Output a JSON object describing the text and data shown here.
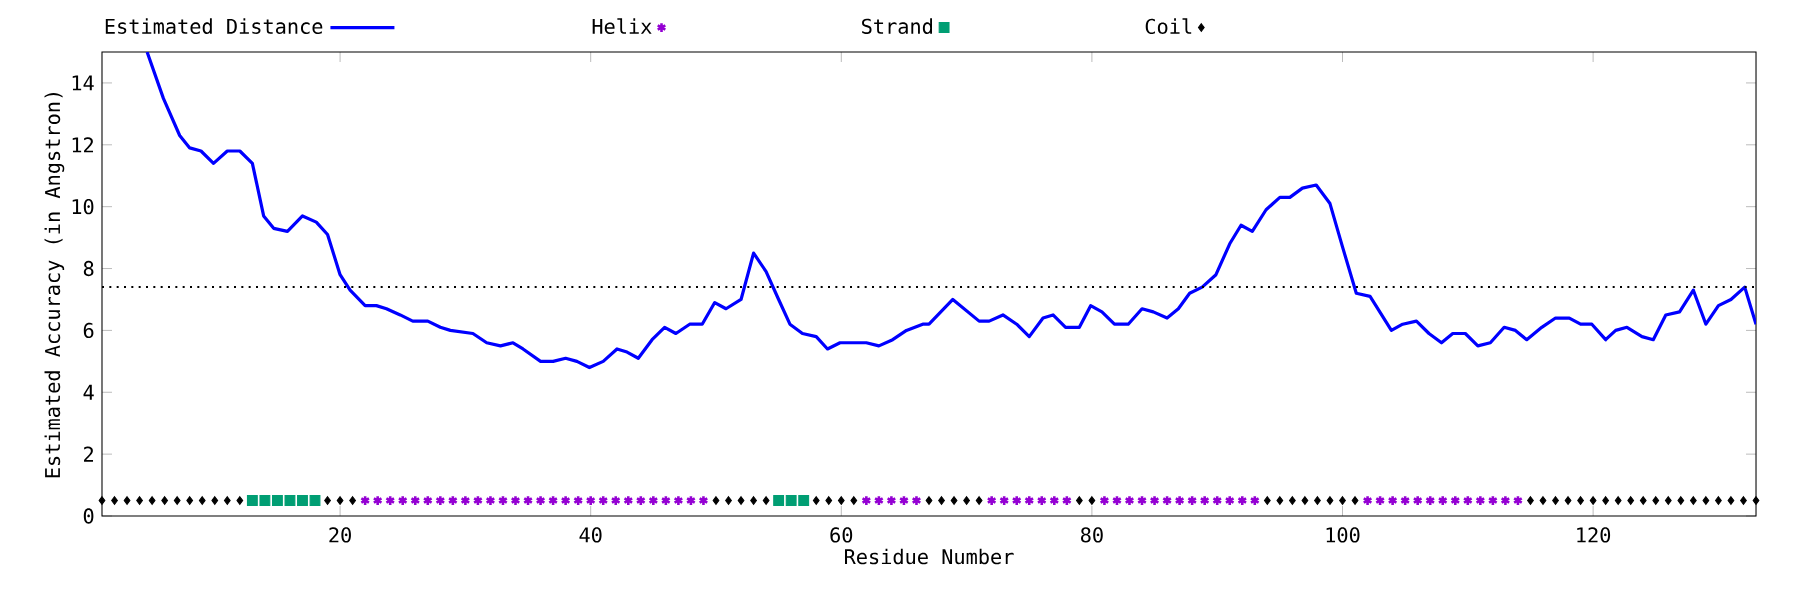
{
  "chart_data": {
    "type": "line",
    "xlabel": "Residue Number",
    "ylabel": "Estimated Accuracy (in Angstron)",
    "xlim": [
      1,
      133
    ],
    "ylim": [
      0,
      15
    ],
    "xticks": [
      20,
      40,
      60,
      80,
      100,
      120
    ],
    "yticks": [
      0,
      2,
      4,
      6,
      8,
      10,
      12,
      14
    ],
    "legend": "top",
    "grid": false,
    "ref_lines": [
      {
        "axis": "y",
        "value": 7.4,
        "color": "#000000",
        "line_style": "dotted"
      }
    ],
    "series": [
      {
        "name": "Estimated Distance",
        "color": "#0000ff",
        "line_style": "solid",
        "marker": "none",
        "x": [
          4.6,
          5.9,
          7.2,
          8.0,
          8.9,
          9.9,
          11.0,
          12.0,
          13.0,
          13.9,
          14.7,
          15.8,
          17.0,
          18.1,
          19.0,
          20.0,
          20.8,
          22.0,
          22.9,
          23.7,
          24.8,
          25.8,
          27.0,
          28.0,
          28.8,
          30.6,
          31.7,
          32.8,
          33.8,
          34.6,
          36.0,
          37.0,
          38.0,
          38.9,
          39.9,
          41.0,
          42.1,
          42.9,
          43.8,
          44.9,
          45.9,
          46.8,
          47.9,
          48.9,
          49.9,
          50.8,
          52.0,
          53.0,
          54.0,
          55.0,
          55.9,
          56.9,
          58.0,
          58.9,
          59.9,
          61.0,
          62.0,
          63.0,
          64.1,
          65.2,
          66.5,
          67.0,
          68.9,
          71.0,
          71.8,
          72.9,
          74.0,
          75.0,
          76.1,
          76.9,
          77.9,
          79.0,
          79.9,
          80.8,
          81.8,
          82.9,
          84.0,
          84.9,
          86.0,
          86.9,
          87.8,
          88.8,
          89.9,
          91.0,
          91.9,
          92.8,
          93.9,
          95.0,
          95.8,
          96.8,
          97.9,
          99.0,
          100.0,
          101.1,
          102.2,
          103.9,
          104.8,
          105.9,
          106.9,
          107.9,
          108.8,
          109.8,
          110.8,
          111.8,
          112.9,
          113.8,
          114.7,
          115.9,
          117.0,
          118.1,
          119.0,
          119.9,
          121.0,
          121.8,
          122.7,
          123.9,
          124.8,
          125.8,
          126.9,
          128.0,
          129.0,
          130.0,
          131.0,
          132.1,
          133.0
        ],
        "values": [
          15.0,
          13.5,
          12.3,
          11.9,
          11.8,
          11.4,
          11.8,
          11.8,
          11.4,
          9.7,
          9.3,
          9.2,
          9.7,
          9.5,
          9.1,
          7.8,
          7.3,
          6.8,
          6.8,
          6.7,
          6.5,
          6.3,
          6.3,
          6.1,
          6.0,
          5.9,
          5.6,
          5.5,
          5.6,
          5.4,
          5.0,
          5.0,
          5.1,
          5.0,
          4.8,
          5.0,
          5.4,
          5.3,
          5.1,
          5.7,
          6.1,
          5.9,
          6.2,
          6.2,
          6.9,
          6.7,
          7.0,
          8.5,
          7.9,
          7.0,
          6.2,
          5.9,
          5.8,
          5.4,
          5.6,
          5.6,
          5.6,
          5.5,
          5.7,
          6.0,
          6.2,
          6.2,
          7.0,
          6.3,
          6.3,
          6.5,
          6.2,
          5.8,
          6.4,
          6.5,
          6.1,
          6.1,
          6.8,
          6.6,
          6.2,
          6.2,
          6.7,
          6.6,
          6.4,
          6.7,
          7.2,
          7.4,
          7.8,
          8.8,
          9.4,
          9.2,
          9.9,
          10.3,
          10.3,
          10.6,
          10.7,
          10.1,
          8.7,
          7.2,
          7.1,
          6.0,
          6.2,
          6.3,
          5.9,
          5.6,
          5.9,
          5.9,
          5.5,
          5.6,
          6.1,
          6.0,
          5.7,
          6.1,
          6.4,
          6.4,
          6.2,
          6.2,
          5.7,
          6.0,
          6.1,
          5.8,
          5.7,
          6.5,
          6.6,
          7.3,
          6.2,
          6.8,
          7.0,
          7.4,
          6.2
        ]
      },
      {
        "name": "Helix",
        "type": "scatter",
        "color": "#9400d3",
        "marker": "cross",
        "x": [
          22,
          23,
          24,
          25,
          26,
          27,
          28,
          29,
          30,
          31,
          32,
          33,
          34,
          35,
          36,
          37,
          38,
          39,
          40,
          41,
          42,
          43,
          44,
          45,
          46,
          47,
          48,
          49,
          62,
          63,
          64,
          65,
          66,
          72,
          73,
          74,
          75,
          76,
          77,
          78,
          81,
          82,
          83,
          84,
          85,
          86,
          87,
          88,
          89,
          90,
          91,
          92,
          93,
          102,
          103,
          104,
          105,
          106,
          107,
          108,
          109,
          110,
          111,
          112,
          113,
          114
        ],
        "values": [
          0.5,
          0.5,
          0.5,
          0.5,
          0.5,
          0.5,
          0.5,
          0.5,
          0.5,
          0.5,
          0.5,
          0.5,
          0.5,
          0.5,
          0.5,
          0.5,
          0.5,
          0.5,
          0.5,
          0.5,
          0.5,
          0.5,
          0.5,
          0.5,
          0.5,
          0.5,
          0.5,
          0.5,
          0.5,
          0.5,
          0.5,
          0.5,
          0.5,
          0.5,
          0.5,
          0.5,
          0.5,
          0.5,
          0.5,
          0.5,
          0.5,
          0.5,
          0.5,
          0.5,
          0.5,
          0.5,
          0.5,
          0.5,
          0.5,
          0.5,
          0.5,
          0.5,
          0.5,
          0.5,
          0.5,
          0.5,
          0.5,
          0.5,
          0.5,
          0.5,
          0.5,
          0.5,
          0.5,
          0.5,
          0.5,
          0.5
        ]
      },
      {
        "name": "Strand",
        "type": "scatter",
        "color": "#009e73",
        "marker": "square",
        "x": [
          13,
          14,
          15,
          16,
          17,
          18,
          55,
          56,
          57
        ],
        "values": [
          0.5,
          0.5,
          0.5,
          0.5,
          0.5,
          0.5,
          0.5,
          0.5,
          0.5
        ]
      },
      {
        "name": "Coil",
        "type": "scatter",
        "color": "#000000",
        "marker": "diamond",
        "x": [
          1,
          2,
          3,
          4,
          5,
          6,
          7,
          8,
          9,
          10,
          11,
          12,
          19,
          20,
          21,
          50,
          51,
          52,
          53,
          54,
          58,
          59,
          60,
          61,
          67,
          68,
          69,
          70,
          71,
          79,
          80,
          94,
          95,
          96,
          97,
          98,
          99,
          100,
          101,
          115,
          116,
          117,
          118,
          119,
          120,
          121,
          122,
          123,
          124,
          125,
          126,
          127,
          128,
          129,
          130,
          131,
          132,
          133
        ],
        "values": [
          0.5,
          0.5,
          0.5,
          0.5,
          0.5,
          0.5,
          0.5,
          0.5,
          0.5,
          0.5,
          0.5,
          0.5,
          0.5,
          0.5,
          0.5,
          0.5,
          0.5,
          0.5,
          0.5,
          0.5,
          0.5,
          0.5,
          0.5,
          0.5,
          0.5,
          0.5,
          0.5,
          0.5,
          0.5,
          0.5,
          0.5,
          0.5,
          0.5,
          0.5,
          0.5,
          0.5,
          0.5,
          0.5,
          0.5,
          0.5,
          0.5,
          0.5,
          0.5,
          0.5,
          0.5,
          0.5,
          0.5,
          0.5,
          0.5,
          0.5,
          0.5,
          0.5,
          0.5,
          0.5,
          0.5,
          0.5,
          0.5,
          0.5
        ]
      }
    ]
  }
}
